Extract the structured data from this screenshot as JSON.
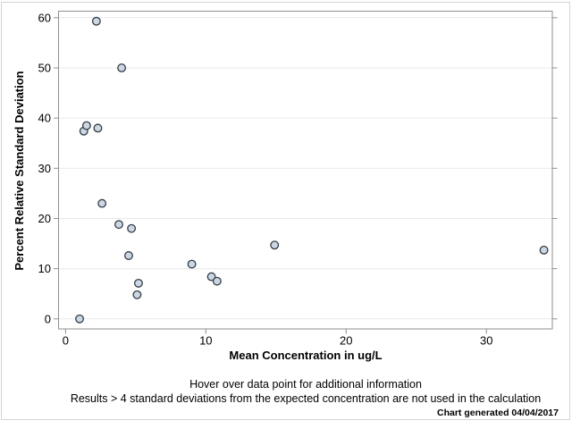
{
  "chart_data": {
    "type": "scatter",
    "title": "",
    "xlabel": "Mean Concentration in ug/L",
    "ylabel": "Percent Relative Standard Deviation",
    "xlim": [
      -0.5,
      34.7
    ],
    "ylim": [
      -2,
      61.3
    ],
    "xticks": [
      0,
      10,
      20,
      30
    ],
    "yticks": [
      0,
      10,
      20,
      30,
      40,
      50,
      60
    ],
    "grid": "horizontal-only",
    "legend": "none",
    "points": [
      {
        "x": 1.0,
        "y": 0.0
      },
      {
        "x": 1.3,
        "y": 37.4
      },
      {
        "x": 1.5,
        "y": 38.5
      },
      {
        "x": 2.2,
        "y": 59.3
      },
      {
        "x": 2.3,
        "y": 38.0
      },
      {
        "x": 2.6,
        "y": 23.0
      },
      {
        "x": 3.8,
        "y": 18.8
      },
      {
        "x": 4.0,
        "y": 50.0
      },
      {
        "x": 4.5,
        "y": 12.6
      },
      {
        "x": 4.7,
        "y": 18.0
      },
      {
        "x": 5.1,
        "y": 4.8
      },
      {
        "x": 5.2,
        "y": 7.1
      },
      {
        "x": 9.0,
        "y": 10.9
      },
      {
        "x": 10.4,
        "y": 8.4
      },
      {
        "x": 10.8,
        "y": 7.5
      },
      {
        "x": 14.9,
        "y": 14.7
      },
      {
        "x": 34.1,
        "y": 13.7
      }
    ]
  },
  "footer": {
    "line1": "Hover over data point for additional information",
    "line2": "Results > 4 standard deviations from the expected concentration are not used in the calculation",
    "generated": "Chart generated 04/04/2017"
  },
  "colors": {
    "marker_fill": "#ccd7e4",
    "marker_stroke": "#333c45",
    "grid": "#e9e9e9",
    "frame": "#8f8f8f",
    "tick": "#8f8f8f",
    "text": "#000000",
    "background": "#ffffff",
    "outer_border": "#d4d4d4"
  }
}
